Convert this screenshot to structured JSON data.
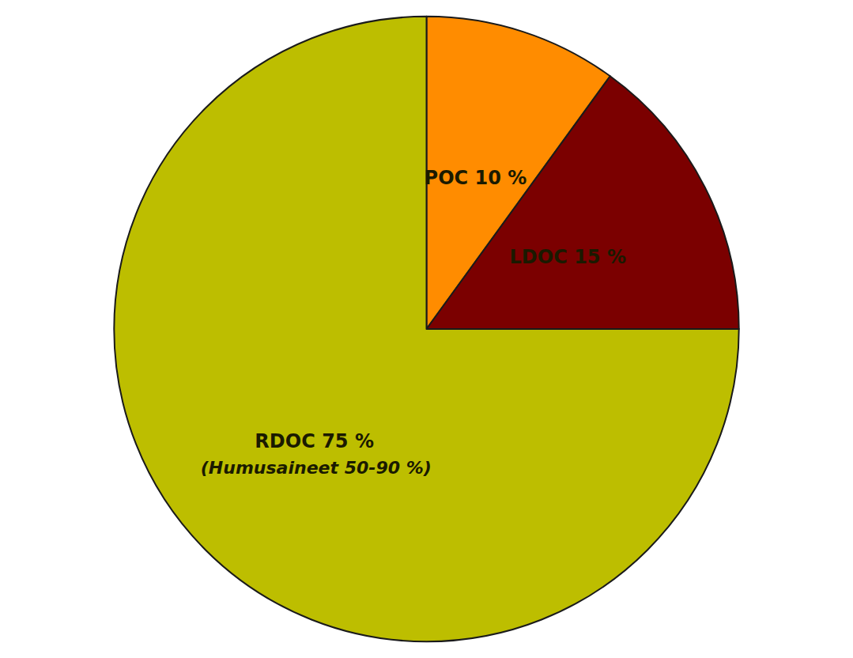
{
  "chart_data": {
    "type": "pie",
    "categories": [
      "POC 10 %",
      "LDOC 15 %",
      "RDOC 75 %"
    ],
    "values": [
      10,
      15,
      75
    ],
    "colors": [
      "#FF8C00",
      "#7B0000",
      "#BDBE00"
    ],
    "annotations": [
      "(Humusaineet 50-90 %)"
    ]
  }
}
